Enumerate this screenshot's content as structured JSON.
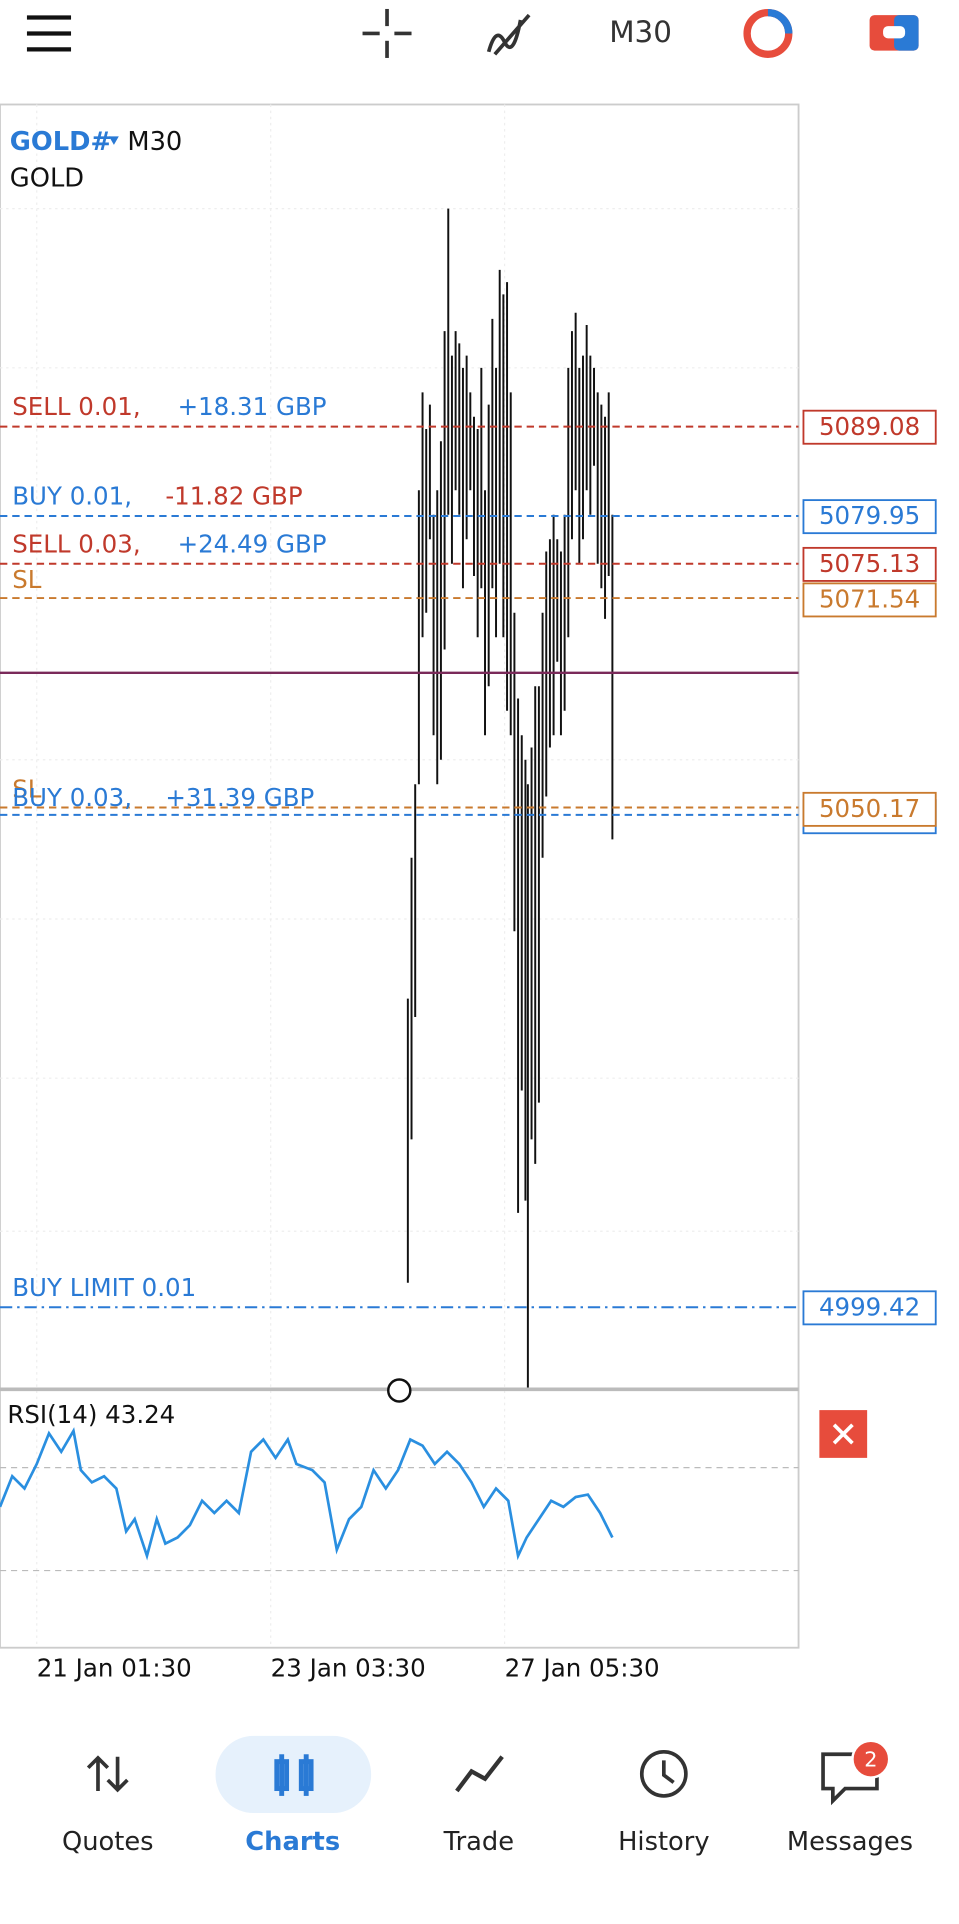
{
  "toolbar": {
    "timeframe": "M30"
  },
  "chart": {
    "symbol": "GOLD#",
    "timeframe": "M30",
    "description": "GOLD",
    "orders": [
      {
        "label": "SELL 0.01,",
        "profit": "+18.31 GBP",
        "price": "5089.08"
      },
      {
        "label": "BUY 0.01,",
        "profit": "-11.82 GBP",
        "price": "5079.95"
      },
      {
        "label": "SELL 0.03,",
        "profit": "+24.49 GBP",
        "price": "5075.13"
      },
      {
        "label": "SL",
        "price": "5071.54"
      },
      {
        "label": "SL",
        "price": "5050.17"
      },
      {
        "label": "BUY 0.03,",
        "profit": "+31.39 GBP"
      },
      {
        "label": "BUY LIMIT 0.01",
        "price": "4999.42"
      }
    ],
    "rsi": "RSI(14) 43.24",
    "x_labels": [
      "21 Jan 01:30",
      "23 Jan 03:30",
      "27 Jan 05:30"
    ]
  },
  "nav": [
    {
      "label": "Quotes"
    },
    {
      "label": "Charts"
    },
    {
      "label": "Trade"
    },
    {
      "label": "History"
    },
    {
      "label": "Messages",
      "badge": "2"
    }
  ]
}
